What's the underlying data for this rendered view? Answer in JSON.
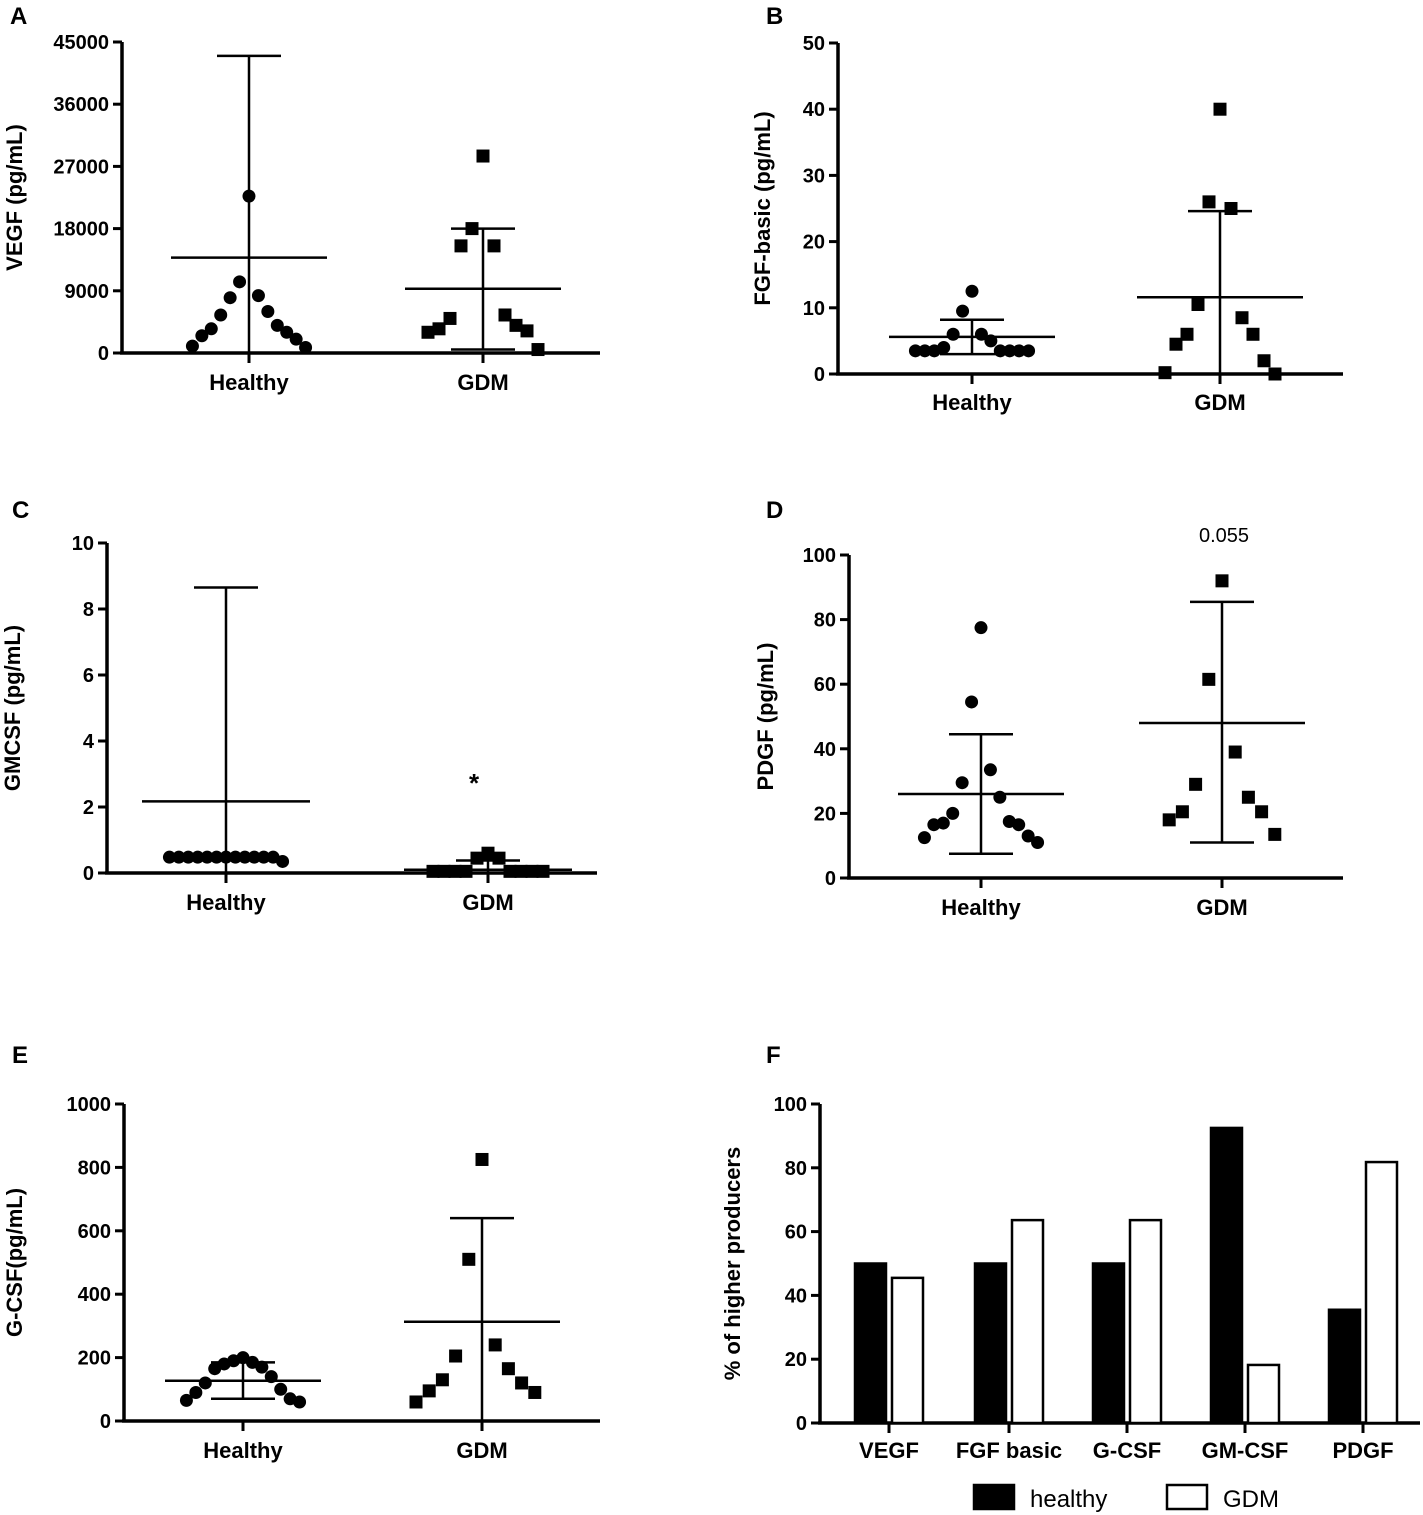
{
  "chart_data": [
    {
      "panel": "A",
      "type": "scatter",
      "ylabel": "VEGF (pg/mL)",
      "ylim": [
        0,
        45000
      ],
      "yticks": [
        0,
        9000,
        18000,
        27000,
        36000,
        45000
      ],
      "categories": [
        "Healthy",
        "GDM"
      ],
      "groups": [
        {
          "name": "Healthy",
          "marker": "circle",
          "mean": 13800,
          "err_low": 0,
          "err_high": 43000,
          "points": [
            22700,
            10300,
            8300,
            8000,
            6000,
            5500,
            4000,
            3500,
            3000,
            2500,
            2000,
            1000,
            800
          ]
        },
        {
          "name": "GDM",
          "marker": "square",
          "mean": 9300,
          "err_low": 500,
          "err_high": 18000,
          "points": [
            28500,
            18000,
            15500,
            15500,
            5500,
            5000,
            4000,
            3500,
            3200,
            3000,
            500
          ]
        }
      ],
      "annotation": ""
    },
    {
      "panel": "B",
      "type": "scatter",
      "ylabel": "FGF-basic (pg/mL)",
      "ylim": [
        0,
        50
      ],
      "yticks": [
        0,
        10,
        20,
        30,
        40,
        50
      ],
      "categories": [
        "Healthy",
        "GDM"
      ],
      "groups": [
        {
          "name": "Healthy",
          "marker": "circle",
          "mean": 5.6,
          "err_low": 3.0,
          "err_high": 8.2,
          "points": [
            12.5,
            9.5,
            6.0,
            6.0,
            5.0,
            4.0,
            3.5,
            3.5,
            3.5,
            3.5,
            3.5,
            3.5,
            3.5
          ]
        },
        {
          "name": "GDM",
          "marker": "square",
          "mean": 11.6,
          "err_low": 0,
          "err_high": 24.6,
          "points": [
            40.0,
            26.0,
            25.0,
            10.5,
            8.5,
            6.0,
            6.0,
            4.5,
            2.0,
            0.2,
            0.0
          ]
        }
      ],
      "annotation": ""
    },
    {
      "panel": "C",
      "type": "scatter",
      "ylabel": "GMCSF (pg/mL)",
      "ylim": [
        0,
        10
      ],
      "yticks": [
        0,
        2,
        4,
        6,
        8,
        10
      ],
      "categories": [
        "Healthy",
        "GDM"
      ],
      "groups": [
        {
          "name": "Healthy",
          "marker": "circle",
          "mean": 2.17,
          "err_low": 0,
          "err_high": 8.65,
          "points": [
            0.48,
            0.48,
            0.48,
            0.48,
            0.48,
            0.48,
            0.48,
            0.48,
            0.48,
            0.48,
            0.48,
            0.48,
            0.35
          ]
        },
        {
          "name": "GDM",
          "marker": "square",
          "mean": 0.1,
          "err_low": 0,
          "err_high": 0.38,
          "points": [
            0.6,
            0.45,
            0.45,
            0.05,
            0.05,
            0.05,
            0.05,
            0.05,
            0.05,
            0.05,
            0.05
          ]
        }
      ],
      "annotation": "*"
    },
    {
      "panel": "D",
      "type": "scatter",
      "ylabel": "PDGF (pg/mL)",
      "ylim": [
        0,
        100
      ],
      "yticks": [
        0,
        20,
        40,
        60,
        80,
        100
      ],
      "categories": [
        "Healthy",
        "GDM"
      ],
      "groups": [
        {
          "name": "Healthy",
          "marker": "circle",
          "mean": 26.0,
          "err_low": 7.5,
          "err_high": 44.5,
          "points": [
            77.5,
            54.5,
            33.5,
            29.5,
            25.0,
            20.0,
            17.5,
            17.0,
            16.5,
            16.5,
            13.0,
            12.5,
            11.0
          ]
        },
        {
          "name": "GDM",
          "marker": "square",
          "mean": 48.0,
          "err_low": 11.0,
          "err_high": 85.5,
          "points": [
            92.0,
            61.5,
            39.0,
            29.0,
            25.0,
            20.5,
            20.5,
            18.0,
            13.5
          ]
        }
      ],
      "annotation": "0.055"
    },
    {
      "panel": "E",
      "type": "scatter",
      "ylabel": "G-CSF(pg/mL)",
      "ylim": [
        0,
        1000
      ],
      "yticks": [
        0,
        200,
        400,
        600,
        800,
        1000
      ],
      "categories": [
        "Healthy",
        "GDM"
      ],
      "groups": [
        {
          "name": "Healthy",
          "marker": "circle",
          "mean": 127,
          "err_low": 70,
          "err_high": 185,
          "points": [
            200,
            190,
            185,
            180,
            170,
            165,
            140,
            120,
            100,
            90,
            70,
            65,
            60
          ]
        },
        {
          "name": "GDM",
          "marker": "square",
          "mean": 313,
          "err_low": 0,
          "err_high": 640,
          "points": [
            825,
            510,
            240,
            205,
            165,
            130,
            120,
            95,
            90,
            60
          ]
        }
      ],
      "annotation": ""
    },
    {
      "panel": "F",
      "type": "bar",
      "ylabel": "% of higher producers",
      "ylim": [
        0,
        100
      ],
      "yticks": [
        0,
        20,
        40,
        60,
        80,
        100
      ],
      "categories": [
        "VEGF",
        "FGF basic",
        "G-CSF",
        "GM-CSF",
        "PDGF"
      ],
      "series": [
        {
          "name": "healthy",
          "fill": "#000000",
          "values": [
            50,
            50,
            50,
            92.5,
            35.5
          ]
        },
        {
          "name": "GDM",
          "fill": "#ffffff",
          "values": [
            45.5,
            63.6,
            63.6,
            18.2,
            81.8
          ]
        }
      ]
    }
  ]
}
